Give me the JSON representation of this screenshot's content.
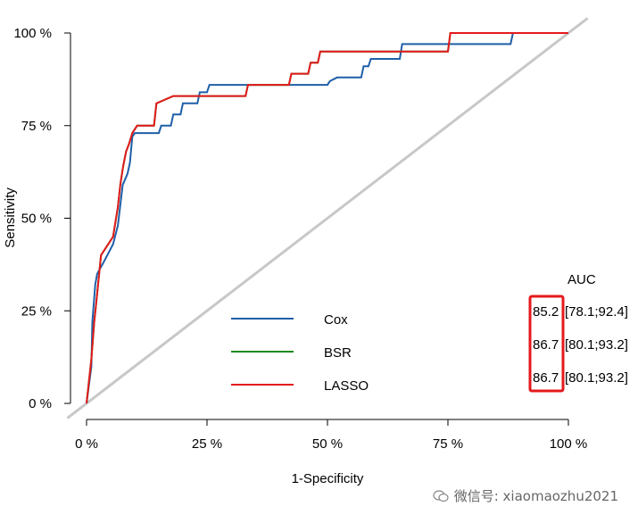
{
  "chart_data": {
    "type": "line",
    "title": "",
    "xlabel": "1-Specificity",
    "ylabel": "Sensitivity",
    "xlim": [
      0,
      100
    ],
    "ylim": [
      0,
      100
    ],
    "xticks": [
      "0 %",
      "25 %",
      "50 %",
      "75 %",
      "100 %"
    ],
    "yticks": [
      "0 %",
      "25 %",
      "50 %",
      "75 %",
      "100 %"
    ],
    "reference_line": {
      "color": "#c8c8c8",
      "from": [
        0,
        0
      ],
      "to": [
        100,
        100
      ]
    },
    "auc_header": "AUC",
    "series": [
      {
        "name": "Cox",
        "color": "#1f5fa8",
        "auc": "85.2",
        "ci": "[78.1;92.4]",
        "points": [
          [
            0,
            0
          ],
          [
            0.5,
            5
          ],
          [
            1,
            10
          ],
          [
            1.2,
            22
          ],
          [
            1.8,
            32
          ],
          [
            2.2,
            35
          ],
          [
            3.5,
            38
          ],
          [
            5.5,
            43
          ],
          [
            6.5,
            48
          ],
          [
            7.5,
            59
          ],
          [
            8.5,
            62
          ],
          [
            9,
            65
          ],
          [
            9.5,
            72
          ],
          [
            10,
            73
          ],
          [
            15,
            73
          ],
          [
            15.5,
            75
          ],
          [
            17.5,
            75
          ],
          [
            18,
            78
          ],
          [
            19.5,
            78
          ],
          [
            20,
            81
          ],
          [
            23,
            81
          ],
          [
            23.5,
            84
          ],
          [
            25,
            84
          ],
          [
            25.5,
            86
          ],
          [
            50,
            86
          ],
          [
            50.5,
            87
          ],
          [
            52,
            88
          ],
          [
            57,
            88
          ],
          [
            57.5,
            91
          ],
          [
            58.5,
            91
          ],
          [
            59,
            93
          ],
          [
            65,
            93
          ],
          [
            65.5,
            97
          ],
          [
            88,
            97
          ],
          [
            88.5,
            100
          ],
          [
            100,
            100
          ]
        ]
      },
      {
        "name": "BSR",
        "color": "#1a8a1a",
        "auc": "86.7",
        "ci": "[80.1;93.2]",
        "points": [
          [
            0,
            0
          ],
          [
            0.5,
            6
          ],
          [
            1,
            12
          ],
          [
            1.6,
            22
          ],
          [
            2,
            27
          ],
          [
            3,
            40
          ],
          [
            4.5,
            43
          ],
          [
            5.5,
            45
          ],
          [
            6.5,
            53
          ],
          [
            7,
            59
          ],
          [
            7.6,
            64
          ],
          [
            8.2,
            68
          ],
          [
            8.8,
            70
          ],
          [
            9.5,
            73
          ],
          [
            10.5,
            75
          ],
          [
            14,
            75
          ],
          [
            14.5,
            81
          ],
          [
            18,
            83
          ],
          [
            33,
            83
          ],
          [
            33.5,
            86
          ],
          [
            42,
            86
          ],
          [
            42.5,
            89
          ],
          [
            46,
            89
          ],
          [
            46.5,
            92
          ],
          [
            48,
            92
          ],
          [
            48.5,
            95
          ],
          [
            75,
            95
          ],
          [
            75.5,
            100
          ],
          [
            100,
            100
          ]
        ]
      },
      {
        "name": "LASSO",
        "color": "#e41a1c",
        "auc": "86.7",
        "ci": "[80.1;93.2]",
        "points": [
          [
            0,
            0
          ],
          [
            0.5,
            6
          ],
          [
            1,
            12
          ],
          [
            1.6,
            22
          ],
          [
            2,
            27
          ],
          [
            3,
            40
          ],
          [
            4.5,
            43
          ],
          [
            5.5,
            45
          ],
          [
            6.5,
            53
          ],
          [
            7,
            59
          ],
          [
            7.6,
            64
          ],
          [
            8.2,
            68
          ],
          [
            8.8,
            70
          ],
          [
            9.5,
            73
          ],
          [
            10.5,
            75
          ],
          [
            14,
            75
          ],
          [
            14.5,
            81
          ],
          [
            18,
            83
          ],
          [
            33,
            83
          ],
          [
            33.5,
            86
          ],
          [
            42,
            86
          ],
          [
            42.5,
            89
          ],
          [
            46,
            89
          ],
          [
            46.5,
            92
          ],
          [
            48,
            92
          ],
          [
            48.5,
            95
          ],
          [
            75,
            95
          ],
          [
            75.5,
            100
          ],
          [
            100,
            100
          ]
        ]
      }
    ],
    "legend": "bottom-center"
  },
  "watermark": "微信号: xiaomaozhu2021"
}
